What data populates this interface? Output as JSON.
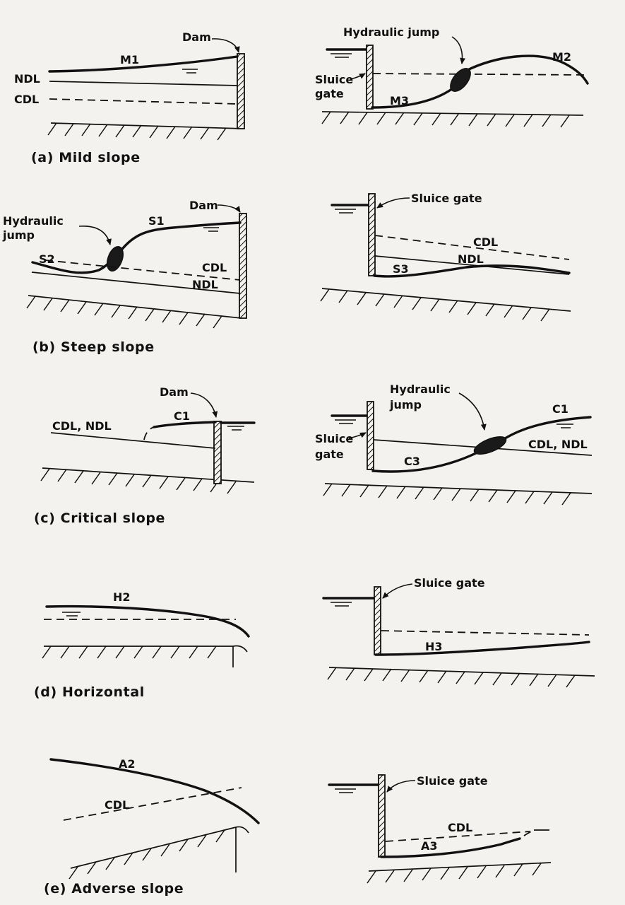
{
  "captions": {
    "a": "(a)  Mild slope",
    "b": "(b)  Steep slope",
    "c": "(c)  Critical slope",
    "d": "(d)  Horizontal",
    "e": "(e)  Adverse slope"
  },
  "labels": {
    "dam": "Dam",
    "hydraulic_jump": "Hydraulic jump",
    "hydraulic": "Hydraulic",
    "jump": "jump",
    "sluice_gate": "Sluice gate",
    "sluice": "Sluice",
    "gate": "gate",
    "ndl": "NDL",
    "cdl": "CDL",
    "cdl_ndl": "CDL, NDL",
    "m1": "M1",
    "m2": "M2",
    "m3": "M3",
    "s1": "S1",
    "s2": "S2",
    "s3": "S3",
    "c1": "C1",
    "c3": "C3",
    "h2": "H2",
    "h3": "H3",
    "a2": "A2",
    "a3": "A3"
  }
}
